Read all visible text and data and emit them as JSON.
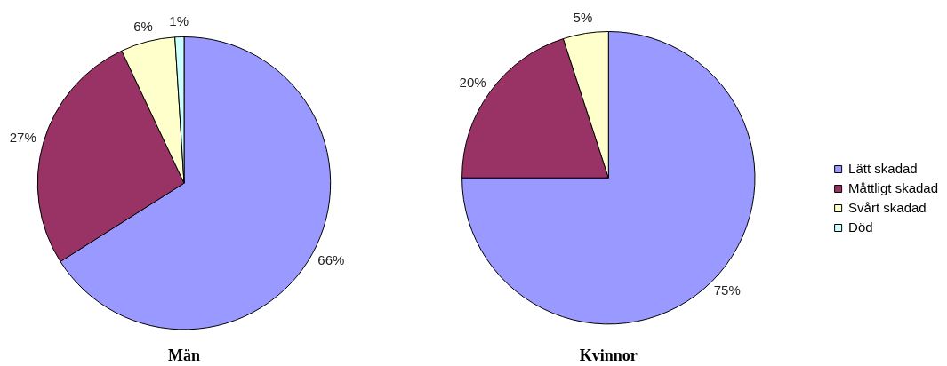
{
  "chart_data": [
    {
      "type": "pie",
      "title": "Män",
      "categories": [
        null,
        null,
        null,
        null
      ],
      "values": [
        66,
        27,
        6,
        1
      ],
      "colors": [
        "#9999ff",
        "#993366",
        "#ffffcc",
        "#ccffff"
      ],
      "value_labels": [
        "66%",
        "27%",
        "6%",
        "1%"
      ]
    },
    {
      "type": "pie",
      "title": "Kvinnor",
      "categories": [
        "Lätt skadad",
        "Måttligt skadad",
        "Svårt skadad",
        "Död"
      ],
      "values": [
        75,
        20,
        5,
        0
      ],
      "colors": [
        "#9999ff",
        "#993366",
        "#ffffcc",
        "#ccffff"
      ],
      "value_labels": [
        "75%",
        "20%",
        "5%",
        null
      ],
      "legend": "right"
    }
  ]
}
